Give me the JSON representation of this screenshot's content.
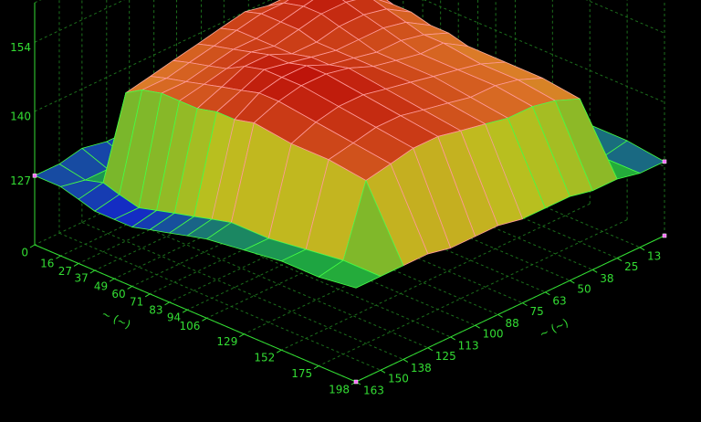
{
  "chart_data": {
    "type": "surface",
    "x_label": "~ (~)",
    "y_label": "~ (~)",
    "x": [
      0,
      16,
      27,
      37,
      49,
      60,
      71,
      83,
      94,
      106,
      129,
      152,
      175,
      198
    ],
    "y": [
      0,
      13,
      25,
      38,
      50,
      63,
      75,
      88,
      100,
      113,
      125,
      138,
      150,
      163
    ],
    "z": [
      [
        132,
        131,
        130,
        129,
        129,
        128,
        128,
        127,
        128,
        127,
        127,
        128,
        127,
        127
      ],
      [
        133,
        132,
        131,
        130,
        129,
        128,
        128,
        127,
        127,
        126,
        125,
        126,
        126,
        127
      ],
      [
        134,
        133,
        143,
        146,
        147,
        147,
        148,
        147,
        146,
        145,
        144,
        143,
        127,
        126
      ],
      [
        134,
        133,
        146,
        149,
        150,
        149,
        149,
        148,
        147,
        146,
        145,
        145,
        126,
        125
      ],
      [
        133,
        132,
        146,
        150,
        151,
        150,
        149,
        148,
        148,
        147,
        146,
        146,
        125,
        125
      ],
      [
        132,
        131,
        145,
        149,
        150,
        150,
        149,
        148,
        149,
        148,
        147,
        146,
        126,
        125
      ],
      [
        131,
        130,
        145,
        148,
        149,
        149,
        148,
        148,
        150,
        150,
        148,
        146,
        127,
        126
      ],
      [
        131,
        130,
        144,
        147,
        148,
        148,
        148,
        149,
        150,
        151,
        149,
        147,
        128,
        127
      ],
      [
        130,
        130,
        144,
        146,
        147,
        147,
        148,
        149,
        151,
        151,
        150,
        147,
        129,
        128
      ],
      [
        130,
        129,
        143,
        146,
        146,
        147,
        148,
        150,
        151,
        151,
        150,
        148,
        130,
        129
      ],
      [
        129,
        129,
        143,
        145,
        146,
        147,
        148,
        149,
        150,
        150,
        149,
        147,
        130,
        130
      ],
      [
        129,
        128,
        143,
        145,
        146,
        146,
        147,
        148,
        149,
        149,
        148,
        147,
        131,
        131
      ],
      [
        129,
        128,
        142,
        144,
        145,
        145,
        146,
        147,
        148,
        148,
        147,
        146,
        132,
        131
      ],
      [
        128,
        128,
        129,
        129,
        130,
        130,
        130,
        131,
        131,
        131,
        132,
        132,
        132,
        132
      ]
    ],
    "xlim": [
      0,
      198
    ],
    "ylim": [
      0,
      163
    ],
    "zlim": [
      113,
      162
    ],
    "xticks": [
      0,
      16,
      27,
      37,
      49,
      60,
      71,
      83,
      94,
      106,
      129,
      152,
      175,
      198
    ],
    "yticks": [
      13,
      25,
      38,
      50,
      63,
      75,
      88,
      100,
      113,
      125,
      138,
      150,
      163
    ],
    "zticks": [
      127,
      140,
      154
    ],
    "colormap": [
      "#1428c8",
      "#1eaa3c",
      "#bec01e",
      "#dc7828",
      "#be140a"
    ]
  }
}
